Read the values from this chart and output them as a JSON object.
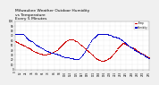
{
  "title": "Milwaukee Weather Outdoor Humidity",
  "title2": "vs Temperature",
  "title3": "Every 5 Minutes",
  "bg_color": "#f0f0f0",
  "plot_bg_color": "#ffffff",
  "grid_color": "#aaaaaa",
  "humidity_color": "#0000cc",
  "temp_color": "#cc0000",
  "legend_humidity_label": "Humidity",
  "legend_temp_label": "Temp",
  "ylim": [
    0,
    100
  ],
  "temp_data": [
    58,
    58,
    57,
    57,
    56,
    56,
    55,
    55,
    55,
    54,
    54,
    54,
    53,
    53,
    52,
    52,
    51,
    51,
    50,
    50,
    50,
    49,
    49,
    48,
    47,
    46,
    46,
    46,
    45,
    45,
    44,
    44,
    43,
    43,
    42,
    42,
    41,
    41,
    40,
    39,
    39,
    38,
    38,
    37,
    37,
    37,
    36,
    36,
    35,
    35,
    34,
    34,
    34,
    33,
    33,
    33,
    32,
    32,
    32,
    32,
    31,
    31,
    31,
    31,
    31,
    31,
    31,
    31,
    31,
    31,
    32,
    32,
    32,
    32,
    33,
    33,
    33,
    34,
    34,
    35,
    35,
    35,
    36,
    36,
    37,
    37,
    38,
    38,
    39,
    39,
    40,
    40,
    41,
    41,
    42,
    43,
    44,
    45,
    46,
    47,
    48,
    49,
    50,
    51,
    52,
    53,
    54,
    55,
    55,
    56,
    57,
    58,
    58,
    59,
    60,
    60,
    61,
    61,
    62,
    62,
    62,
    63,
    63,
    63,
    63,
    63,
    63,
    62,
    62,
    62,
    61,
    61,
    60,
    59,
    59,
    58,
    58,
    57,
    56,
    55,
    55,
    54,
    53,
    52,
    52,
    51,
    50,
    49,
    49,
    48,
    47,
    46,
    45,
    44,
    44,
    43,
    42,
    41,
    40,
    40,
    39,
    38,
    37,
    36,
    36,
    35,
    34,
    33,
    32,
    31,
    30,
    30,
    29,
    28,
    27,
    26,
    25,
    24,
    24,
    23,
    22,
    22,
    21,
    21,
    20,
    20,
    20,
    19,
    19,
    18,
    18,
    18,
    18,
    18,
    18,
    18,
    18,
    18,
    19,
    19,
    20,
    20,
    20,
    21,
    22,
    22,
    23,
    23,
    24,
    25,
    26,
    27,
    28,
    29,
    30,
    31,
    32,
    33,
    34,
    35,
    37,
    38,
    39,
    40,
    41,
    43,
    44,
    45,
    46,
    47,
    48,
    49,
    50,
    51,
    52,
    53,
    54,
    55,
    55,
    55,
    55,
    54,
    54,
    53,
    52,
    52,
    51,
    51,
    50,
    50,
    49,
    49,
    48,
    48,
    47,
    47,
    46,
    46,
    46,
    45,
    45,
    44,
    44,
    43,
    43,
    42,
    42,
    41,
    41,
    40,
    39,
    39,
    38,
    37,
    37,
    36,
    35,
    35,
    34,
    33,
    33,
    32,
    32,
    31,
    31,
    30,
    30,
    29,
    29,
    28,
    28,
    27,
    27,
    26,
    26,
    25
  ],
  "humidity_data": [
    74,
    74,
    74,
    74,
    74,
    74,
    74,
    74,
    74,
    74,
    74,
    74,
    74,
    74,
    74,
    74,
    74,
    74,
    74,
    72,
    71,
    70,
    69,
    68,
    67,
    66,
    65,
    64,
    63,
    62,
    61,
    61,
    60,
    60,
    59,
    59,
    59,
    59,
    58,
    57,
    56,
    55,
    55,
    54,
    53,
    52,
    52,
    51,
    50,
    50,
    49,
    49,
    48,
    47,
    47,
    46,
    46,
    45,
    45,
    44,
    44,
    43,
    42,
    42,
    41,
    40,
    40,
    40,
    39,
    39,
    39,
    38,
    38,
    37,
    37,
    36,
    36,
    36,
    35,
    35,
    35,
    35,
    34,
    34,
    34,
    34,
    33,
    33,
    33,
    33,
    32,
    32,
    32,
    31,
    31,
    31,
    30,
    30,
    30,
    29,
    29,
    29,
    28,
    28,
    27,
    27,
    27,
    27,
    26,
    26,
    26,
    26,
    26,
    26,
    25,
    25,
    25,
    25,
    25,
    25,
    24,
    24,
    24,
    23,
    23,
    23,
    23,
    23,
    23,
    22,
    22,
    22,
    22,
    22,
    22,
    22,
    22,
    22,
    22,
    22,
    22,
    23,
    24,
    25,
    26,
    27,
    28,
    29,
    30,
    31,
    33,
    34,
    35,
    37,
    38,
    40,
    41,
    43,
    44,
    46,
    48,
    49,
    51,
    53,
    54,
    56,
    57,
    59,
    60,
    62,
    63,
    64,
    65,
    66,
    66,
    67,
    68,
    68,
    69,
    70,
    71,
    72,
    73,
    74,
    74,
    74,
    74,
    74,
    74,
    74,
    74,
    74,
    74,
    74,
    74,
    74,
    74,
    74,
    74,
    74,
    74,
    74,
    74,
    73,
    73,
    73,
    72,
    72,
    72,
    71,
    71,
    71,
    70,
    70,
    69,
    68,
    68,
    68,
    68,
    68,
    68,
    68,
    68,
    67,
    67,
    67,
    67,
    67,
    66,
    65,
    65,
    64,
    63,
    62,
    62,
    61,
    61,
    60,
    59,
    58,
    57,
    57,
    56,
    55,
    55,
    54,
    53,
    52,
    51,
    51,
    50,
    49,
    48,
    47,
    47,
    46,
    46,
    45,
    45,
    44,
    43,
    43,
    42,
    41,
    41,
    40,
    40,
    39,
    39,
    38,
    37,
    37,
    36,
    36,
    35,
    35,
    34,
    33,
    33,
    32,
    32,
    31,
    31,
    30,
    30,
    29,
    28,
    28,
    27,
    27,
    26,
    25,
    25,
    24,
    24,
    23
  ],
  "marker_size": 0.5,
  "tick_label_size": 2.0,
  "title_fontsize": 3.2,
  "n_xticks": 25
}
